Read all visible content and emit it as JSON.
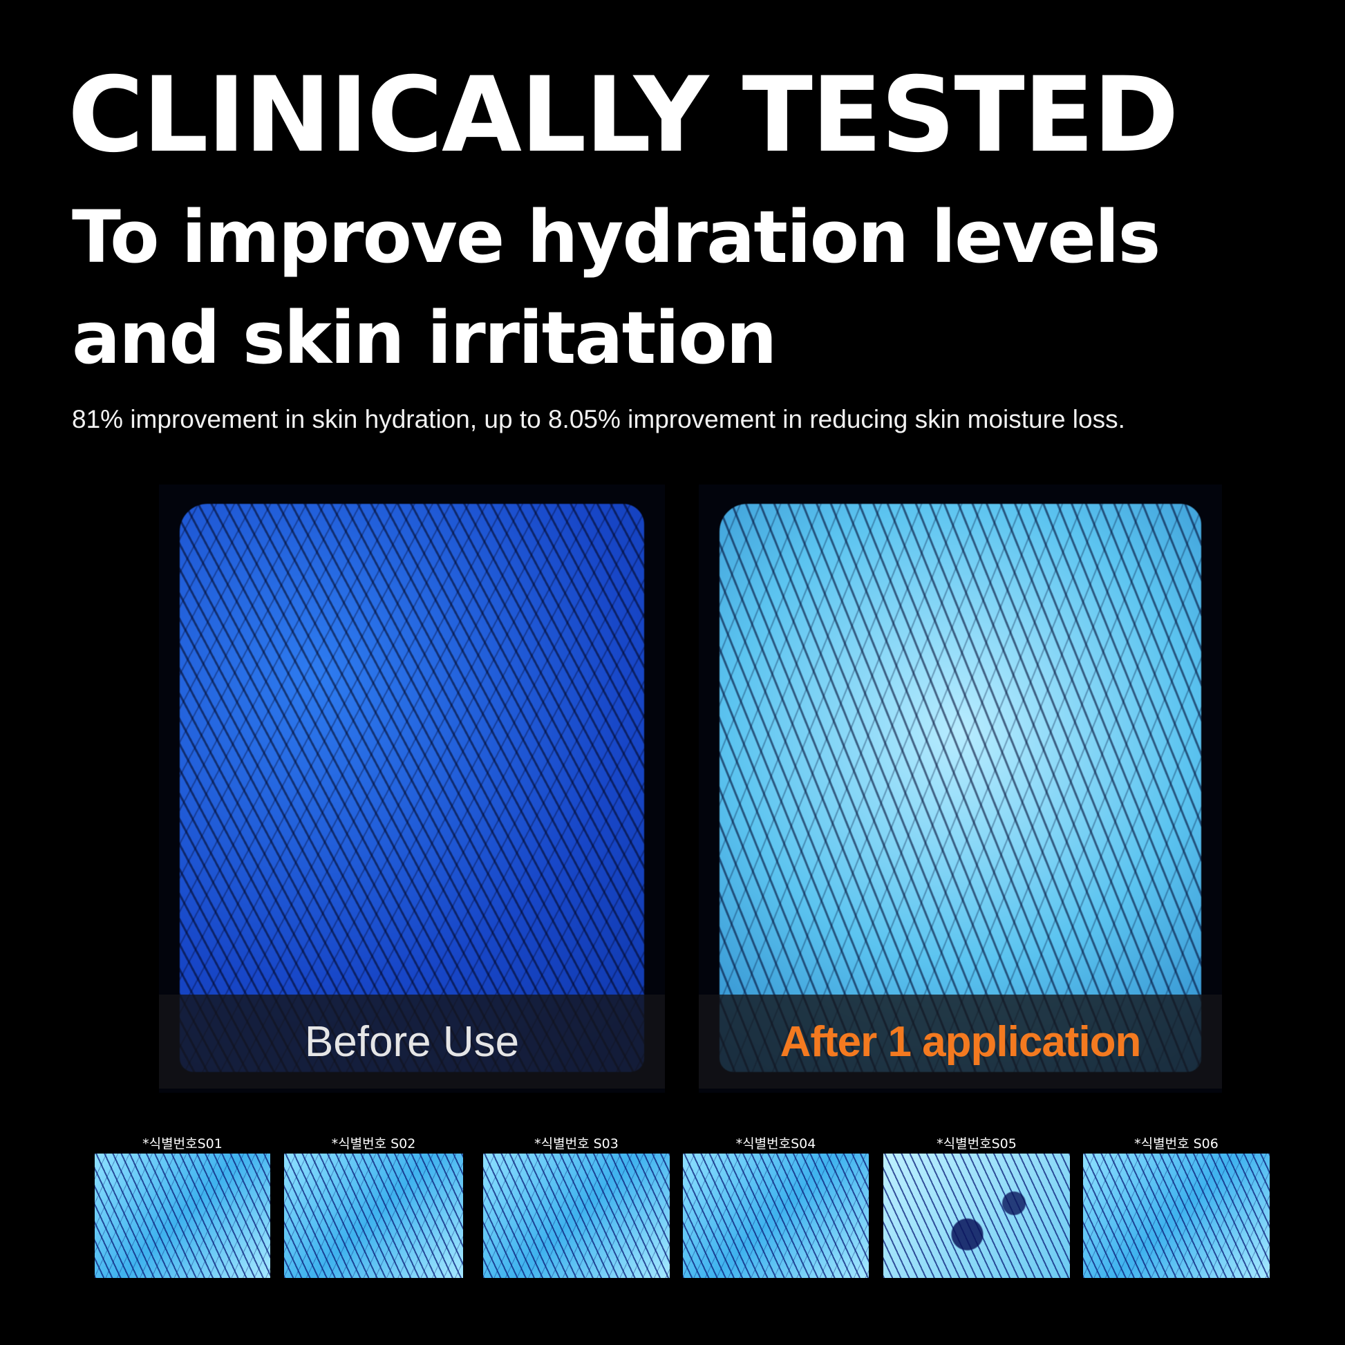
{
  "headline": "CLINICALLY TESTED",
  "subheadline": "To improve hydration levels and skin irritation",
  "description": "81% improvement in skin hydration, up to 8.05% improvement in reducing skin moisture loss.",
  "comparison": {
    "before_label": "Before Use",
    "after_label": "After 1 application",
    "after_color": "#f47a20"
  },
  "samples": [
    {
      "label": "*식별번호S01"
    },
    {
      "label": "*식별번호 S02"
    },
    {
      "label": "*식별번호 S03"
    },
    {
      "label": "*식별번호S04"
    },
    {
      "label": "*식별번호S05"
    },
    {
      "label": "*식별번호 S06"
    }
  ]
}
